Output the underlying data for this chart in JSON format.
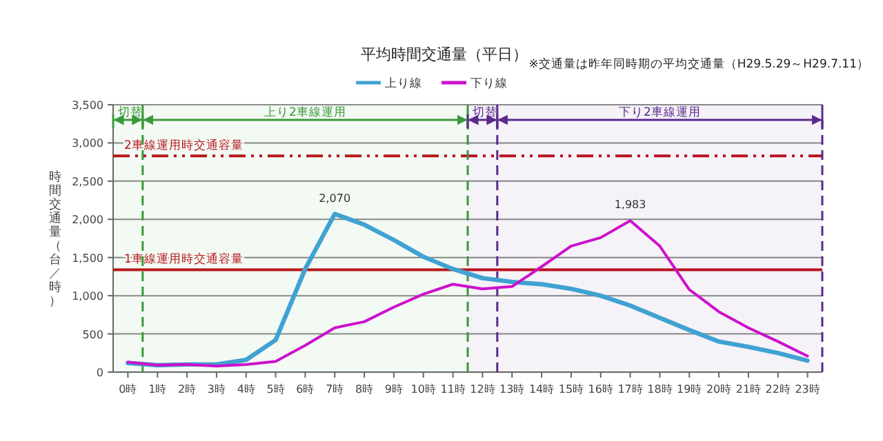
{
  "chart_data": {
    "type": "line",
    "title": "平均時間交通量（平日）",
    "ylabel": "時間交通量（台／時）",
    "annotations": [
      "※交通量は昨年同時期の平均交通量（H29.5.29～H29.7.11）"
    ],
    "x": [
      0,
      1,
      2,
      3,
      4,
      5,
      6,
      7,
      8,
      9,
      10,
      11,
      12,
      13,
      14,
      15,
      16,
      17,
      18,
      19,
      20,
      21,
      22,
      23
    ],
    "xlim": [
      -0.5,
      23.5
    ],
    "xticks": [
      {
        "value": 0,
        "label": "0時"
      },
      {
        "value": 1,
        "label": "1時"
      },
      {
        "value": 2,
        "label": "2時"
      },
      {
        "value": 3,
        "label": "3時"
      },
      {
        "value": 4,
        "label": "4時"
      },
      {
        "value": 5,
        "label": "5時"
      },
      {
        "value": 6,
        "label": "6時"
      },
      {
        "value": 7,
        "label": "7時"
      },
      {
        "value": 8,
        "label": "8時"
      },
      {
        "value": 9,
        "label": "9時"
      },
      {
        "value": 10,
        "label": "10時"
      },
      {
        "value": 11,
        "label": "11時"
      },
      {
        "value": 12,
        "label": "12時"
      },
      {
        "value": 13,
        "label": "13時"
      },
      {
        "value": 14,
        "label": "14時"
      },
      {
        "value": 15,
        "label": "15時"
      },
      {
        "value": 16,
        "label": "16時"
      },
      {
        "value": 17,
        "label": "17時"
      },
      {
        "value": 18,
        "label": "18時"
      },
      {
        "value": 19,
        "label": "19時"
      },
      {
        "value": 20,
        "label": "20時"
      },
      {
        "value": 21,
        "label": "21時"
      },
      {
        "value": 22,
        "label": "22時"
      },
      {
        "value": 23,
        "label": "23時"
      }
    ],
    "ylim": [
      0,
      3500
    ],
    "yticks": [
      {
        "value": 0,
        "label": "0"
      },
      {
        "value": 500,
        "label": "500"
      },
      {
        "value": 1000,
        "label": "1,000"
      },
      {
        "value": 1500,
        "label": "1,500"
      },
      {
        "value": 2000,
        "label": "2,000"
      },
      {
        "value": 2500,
        "label": "2,500"
      },
      {
        "value": 3000,
        "label": "3,000"
      },
      {
        "value": 3500,
        "label": "3,500"
      }
    ],
    "grid": "y",
    "legend": "top",
    "marker": "none",
    "line_style": "solid",
    "series": [
      {
        "name": "上り線",
        "color": "#3fa2d2",
        "values": [
          120,
          90,
          100,
          100,
          160,
          420,
          1350,
          2070,
          1930,
          1730,
          1510,
          1350,
          1230,
          1180,
          1150,
          1090,
          1000,
          870,
          710,
          550,
          400,
          330,
          250,
          150
        ],
        "value_labels": [
          null,
          null,
          null,
          null,
          null,
          null,
          null,
          "2,070",
          null,
          null,
          null,
          null,
          null,
          null,
          null,
          null,
          null,
          null,
          null,
          null,
          null,
          null,
          null,
          null
        ]
      },
      {
        "name": "下り線",
        "color": "#cc11cc",
        "values": [
          130,
          90,
          100,
          80,
          100,
          140,
          350,
          580,
          660,
          850,
          1020,
          1150,
          1090,
          1120,
          1380,
          1650,
          1760,
          1983,
          1650,
          1080,
          790,
          580,
          400,
          210
        ],
        "value_labels": [
          null,
          null,
          null,
          null,
          null,
          null,
          null,
          null,
          null,
          null,
          null,
          null,
          null,
          null,
          null,
          null,
          null,
          "1,983",
          null,
          null,
          null,
          null,
          null,
          null
        ]
      }
    ],
    "ref_lines": [
      {
        "axis": "y",
        "value": 1340,
        "label": "1車線運用時交通容量",
        "color": "#c0101a",
        "line_style": "solid"
      },
      {
        "axis": "y",
        "value": 2830,
        "label": "2車線運用時交通容量",
        "color": "#c0101a",
        "line_style": "dashdotdot"
      },
      {
        "axis": "x",
        "value": 0.5,
        "color": "#3a9a3a",
        "line_style": "dashed"
      },
      {
        "axis": "x",
        "value": 11.5,
        "color": "#3a9a3a",
        "line_style": "dashed"
      },
      {
        "axis": "x",
        "value": 12.5,
        "color": "#5a2a8a",
        "line_style": "dashed"
      },
      {
        "axis": "x",
        "value": 23.5,
        "color": "#5a2a8a",
        "line_style": "dashed"
      }
    ],
    "bands": [
      {
        "axis": "x",
        "from": -0.5,
        "to": 0.5,
        "label": "切替",
        "color": "#3a9a3a"
      },
      {
        "axis": "x",
        "from": 0.5,
        "to": 11.5,
        "label": "上り2車線運用",
        "color": "#3a9a3a"
      },
      {
        "axis": "x",
        "from": 11.5,
        "to": 12.5,
        "label": "切替",
        "color": "#5a2a8a"
      },
      {
        "axis": "x",
        "from": 12.5,
        "to": 23.5,
        "label": "下り2車線運用",
        "color": "#5a2a8a"
      }
    ]
  }
}
